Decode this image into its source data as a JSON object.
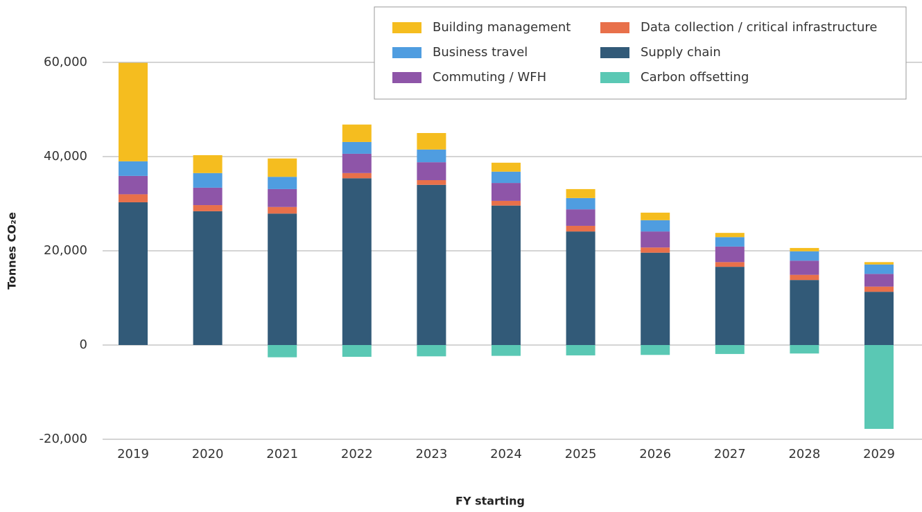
{
  "chart_data": {
    "type": "stacked_bar",
    "y_label": "Tonnes CO₂e",
    "x_label": "FY starting",
    "categories": [
      "2019",
      "2020",
      "2021",
      "2022",
      "2023",
      "2024",
      "2025",
      "2026",
      "2027",
      "2028",
      "2029"
    ],
    "series": [
      {
        "name": "Supply chain",
        "color": "#325a78",
        "values": [
          30300,
          28400,
          27900,
          35400,
          34000,
          29600,
          24100,
          19600,
          16600,
          13800,
          11300
        ]
      },
      {
        "name": "Data collection / critical infrastructure",
        "color": "#e8704a",
        "values": [
          1700,
          1300,
          1400,
          1100,
          1000,
          1000,
          1200,
          1100,
          1000,
          1100,
          1100
        ]
      },
      {
        "name": "Commuting / WFH",
        "color": "#8e55a8",
        "values": [
          3900,
          3700,
          3800,
          4100,
          3800,
          3800,
          3500,
          3400,
          3300,
          3000,
          2700
        ]
      },
      {
        "name": "Business travel",
        "color": "#4f9de0",
        "values": [
          3100,
          3100,
          2600,
          2500,
          2700,
          2400,
          2400,
          2400,
          2000,
          2000,
          2000
        ]
      },
      {
        "name": "Building management",
        "color": "#f5bd1f",
        "values": [
          20900,
          3800,
          3900,
          3700,
          3500,
          1900,
          1900,
          1600,
          900,
          700,
          500
        ]
      },
      {
        "name": "Carbon offsetting",
        "color": "#5ac8b4",
        "values": [
          0,
          0,
          -2600,
          -2500,
          -2400,
          -2300,
          -2200,
          -2100,
          -1900,
          -1800,
          -17800
        ]
      }
    ],
    "ylim": [
      -25000,
      66000
    ],
    "yticks": [
      {
        "value": -20000,
        "label": "-20,000"
      },
      0,
      {
        "value": 20000,
        "label": "20,000"
      },
      {
        "value": 40000,
        "label": "40,000"
      },
      {
        "value": 60000,
        "label": "60,000"
      }
    ],
    "grid": true,
    "legend": "top-right"
  }
}
